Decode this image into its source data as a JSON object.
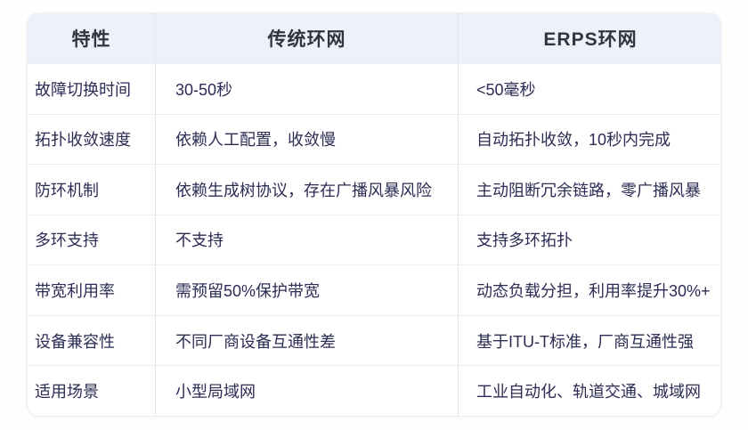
{
  "chart_data": {
    "type": "table",
    "title": "",
    "columns": [
      "特性",
      "传统环网",
      "ERPS环网"
    ],
    "rows": [
      [
        "故障切换时间",
        "30-50秒",
        "<50毫秒"
      ],
      [
        "拓扑收敛速度",
        "依赖人工配置，收敛慢",
        "自动拓扑收敛，10秒内完成"
      ],
      [
        "防环机制",
        "依赖生成树协议，存在广播风暴风险",
        "主动阻断冗余链路，零广播风暴"
      ],
      [
        "多环支持",
        "不支持",
        "支持多环拓扑"
      ],
      [
        "带宽利用率",
        "需预留50%保护带宽",
        "动态负载分担，利用率提升30%+"
      ],
      [
        "设备兼容性",
        "不同厂商设备互通性差",
        "基于ITU-T标准，厂商互通性强"
      ],
      [
        "适用场景",
        "小型局域网",
        "工业自动化、轨道交通、城域网"
      ]
    ],
    "layout": {
      "legend": "none",
      "header_position": "top",
      "column_alignment": [
        "left",
        "left",
        "left"
      ],
      "header_alignment": "center"
    }
  },
  "colors": {
    "page_background": "#fefefe",
    "card_background": "#ffffff",
    "header_background": "#edf1fa",
    "header_text": "#34353c",
    "body_text": "#2c2c55",
    "row_divider": "#ebecf1",
    "column_divider": "#e4e6ee",
    "card_border": "#ededf3"
  }
}
